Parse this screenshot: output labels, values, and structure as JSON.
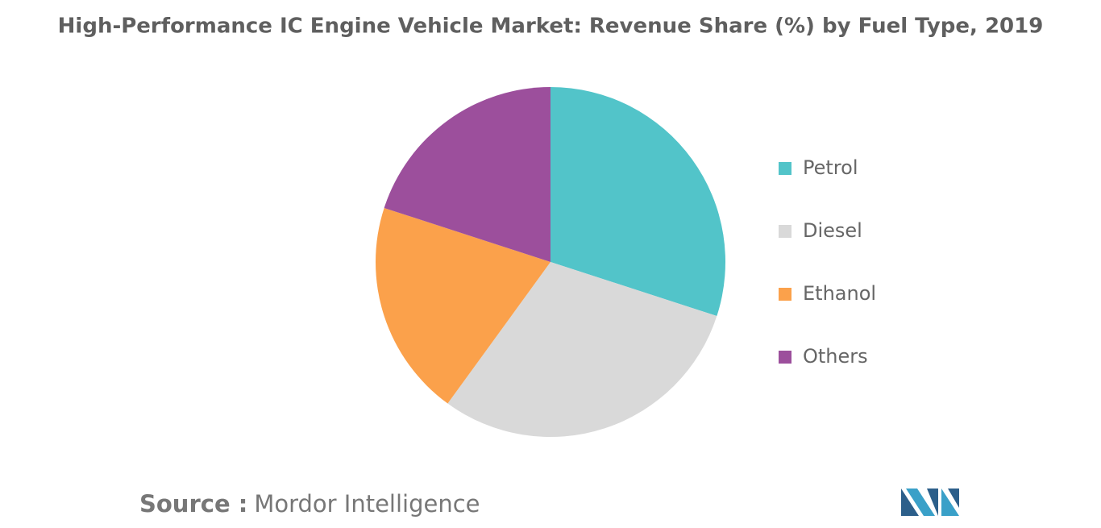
{
  "chart_data": {
    "type": "pie",
    "title": "High-Performance IC Engine Vehicle Market: Revenue Share (%) by Fuel Type, 2019",
    "categories": [
      "Petrol",
      "Diesel",
      "Ethanol",
      "Others"
    ],
    "values": [
      30,
      30,
      20,
      20
    ],
    "colors": [
      "#52c4c9",
      "#d9d9d9",
      "#fba14b",
      "#9c4f9c"
    ],
    "legend": "right",
    "source_label": "Source :",
    "source": "Mordor Intelligence"
  }
}
